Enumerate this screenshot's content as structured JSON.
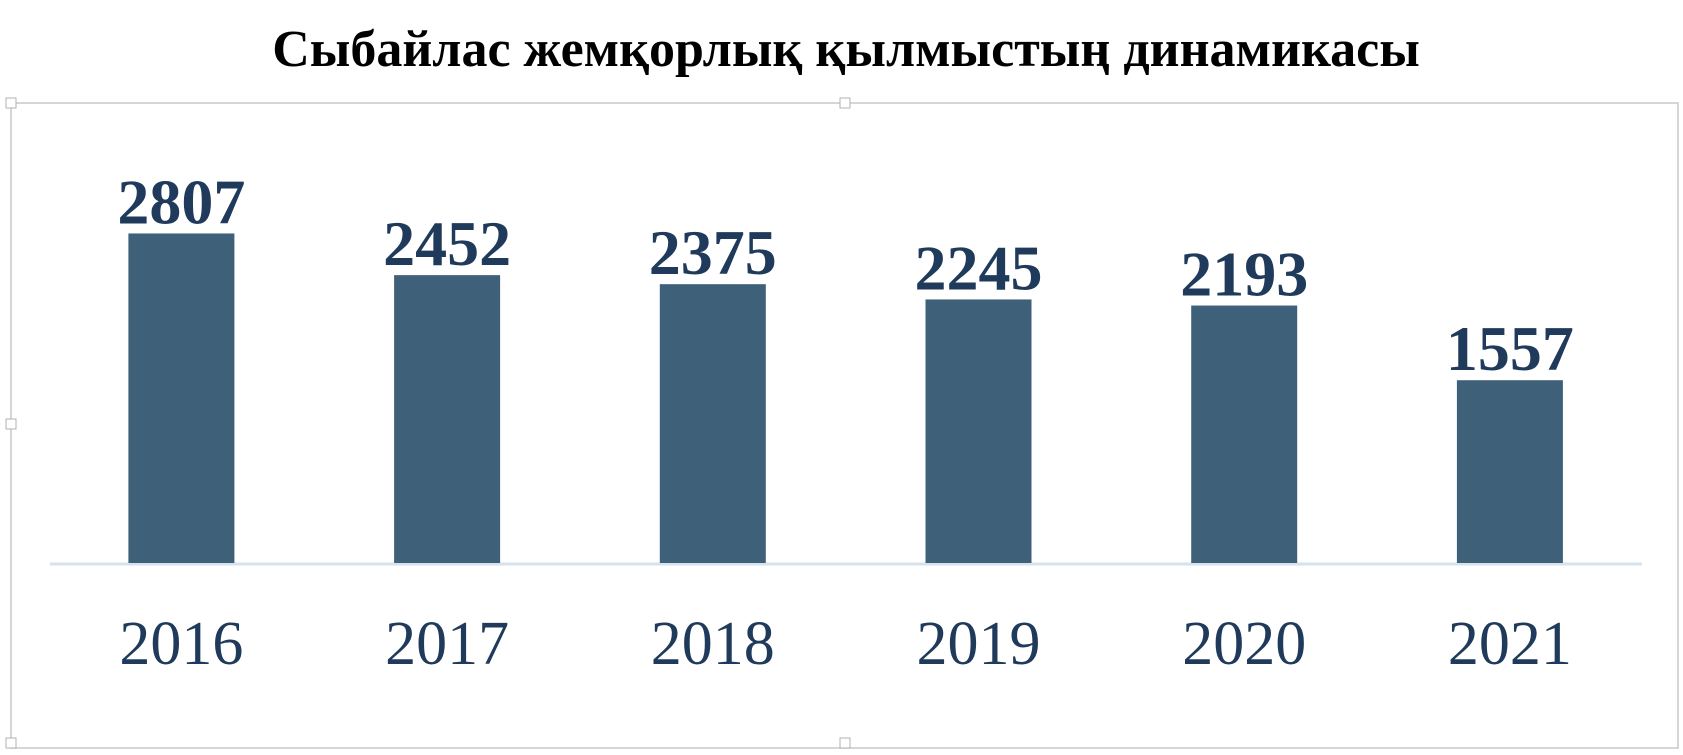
{
  "chart_data": {
    "type": "bar",
    "title": "Сыбайлас жемқорлық қылмыстың динамикасы",
    "categories": [
      "2016",
      "2017",
      "2018",
      "2019",
      "2020",
      "2021"
    ],
    "values": [
      2807,
      2452,
      2375,
      2245,
      2193,
      1557
    ],
    "color": "#3e6078"
  }
}
